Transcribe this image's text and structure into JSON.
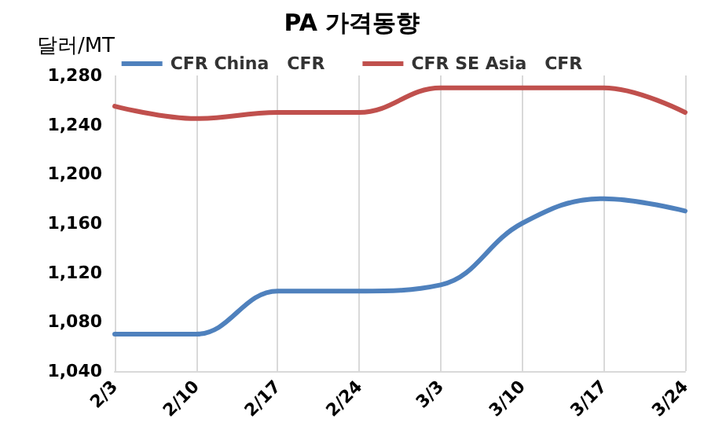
{
  "chart_data": {
    "type": "line",
    "title": "PA 가격동향",
    "ylabel": "달러/MT",
    "categories": [
      "2/3",
      "2/10",
      "2/17",
      "2/24",
      "3/3",
      "3/10",
      "3/17",
      "3/24"
    ],
    "series": [
      {
        "name": "CFR China   CFR",
        "color": "#4f81bd",
        "values": [
          1070,
          1070,
          1105,
          1105,
          1110,
          1160,
          1180,
          1170
        ]
      },
      {
        "name": "CFR SE Asia   CFR",
        "color": "#c0504d",
        "values": [
          1255,
          1245,
          1250,
          1250,
          1270,
          1270,
          1270,
          1250
        ]
      }
    ],
    "ylim": [
      1040,
      1280
    ],
    "yticks": [
      {
        "value": 1040,
        "label": "1,040"
      },
      {
        "value": 1080,
        "label": "1,080"
      },
      {
        "value": 1120,
        "label": "1,120"
      },
      {
        "value": 1160,
        "label": "1,160"
      },
      {
        "value": 1200,
        "label": "1,200"
      },
      {
        "value": 1240,
        "label": "1,240"
      },
      {
        "value": 1280,
        "label": "1,280"
      }
    ],
    "grid": "x",
    "legend": "top",
    "marker": "none",
    "line_style": "solid"
  }
}
